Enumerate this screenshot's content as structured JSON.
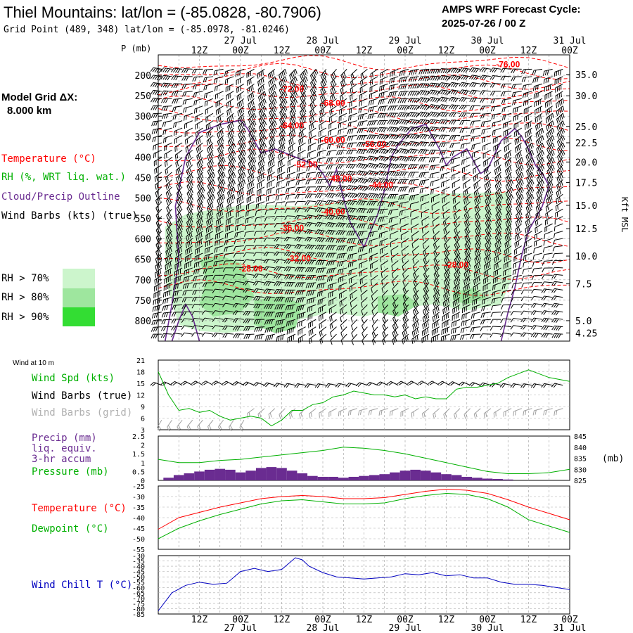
{
  "header": {
    "title": "Thiel Mountains:  lat/lon = (-85.0828, -80.7906)",
    "grid_point": "Grid Point (489, 348) lat/lon = (-85.0978, -81.0246)",
    "cycle_line1": "AMPS WRF Forecast Cycle:",
    "cycle_line2": "2025-07-26 / 00  Z",
    "model_grid_line1": "Model Grid ΔX:",
    "model_grid_line2": "8.000 km"
  },
  "colors": {
    "temperature": "#ff0000",
    "rh": "#00b000",
    "cloud": "#6a2c91",
    "wind": "#000000",
    "wind_grid": "#a0a0a0",
    "rh70": "#ccf5cc",
    "rh80": "#9ee69e",
    "rh90": "#33dd33",
    "wind_chill": "#0000c0",
    "precip": "#6a2c91"
  },
  "time_axis": {
    "hour_labels": [
      "12Z",
      "00Z",
      "12Z",
      "00Z",
      "12Z",
      "00Z",
      "12Z",
      "00Z",
      "12Z",
      "00Z"
    ],
    "date_labels": [
      "27 Jul",
      "28 Jul",
      "29 Jul",
      "30 Jul",
      "31 Jul"
    ],
    "range_hours": [
      0,
      120
    ]
  },
  "legend": {
    "temperature": "Temperature (°C)",
    "rh": "RH (%, WRT liq. wat.)",
    "cloud": "Cloud/Precip Outline",
    "wind": "Wind Barbs (kts) (true)",
    "rh70": "RH > 70%",
    "rh80": "RH > 80%",
    "rh90": "RH > 90%"
  },
  "chart_data": [
    {
      "type": "heatmap",
      "ylabel_left": "P (mb)",
      "ylabel_right": "Kft MSL",
      "pressure_ticks": [
        200,
        250,
        300,
        350,
        400,
        450,
        500,
        550,
        600,
        650,
        700,
        750,
        800
      ],
      "pressure_range": [
        150,
        850
      ],
      "height_ticks": [
        {
          "label": "35.0",
          "p": 198
        },
        {
          "label": "30.0",
          "p": 250
        },
        {
          "label": "25.0",
          "p": 325
        },
        {
          "label": "22.5",
          "p": 365
        },
        {
          "label": "20.0",
          "p": 412
        },
        {
          "label": "17.5",
          "p": 462
        },
        {
          "label": "15.0",
          "p": 518
        },
        {
          "label": "12.5",
          "p": 575
        },
        {
          "label": "10.0",
          "p": 642
        },
        {
          "label": "7.5",
          "p": 710
        },
        {
          "label": "5.0",
          "p": 800
        },
        {
          "label": "4.25",
          "p": 830
        }
      ],
      "temperature_labels": [
        {
          "text": "-76.00",
          "t": 102,
          "p": 180
        },
        {
          "text": "-72.00",
          "t": 39,
          "p": 240
        },
        {
          "text": "-68.00",
          "t": 51,
          "p": 275
        },
        {
          "text": "-64.00",
          "t": 39,
          "p": 330
        },
        {
          "text": "-60.00",
          "t": 51,
          "p": 365
        },
        {
          "text": "-56.00",
          "t": 63,
          "p": 375
        },
        {
          "text": "-52.00",
          "t": 43,
          "p": 425
        },
        {
          "text": "-48.00",
          "t": 53,
          "p": 460
        },
        {
          "text": "-44.00",
          "t": 65,
          "p": 475
        },
        {
          "text": "-40.00",
          "t": 51,
          "p": 540
        },
        {
          "text": "-36.00",
          "t": 39,
          "p": 580
        },
        {
          "text": "-32.00",
          "t": 41,
          "p": 655
        },
        {
          "text": "-28.00",
          "t": 27,
          "p": 680
        },
        {
          "text": "-28.00",
          "t": 87,
          "p": 670
        }
      ]
    },
    {
      "type": "line",
      "title": "Wind at 10 m",
      "labels": [
        "Wind Spd (kts)",
        "Wind Barbs (true)",
        "Wind Barbs (grid)"
      ],
      "ylim": [
        3,
        21
      ],
      "y_ticks": [
        3,
        6,
        9,
        12,
        15,
        18,
        21
      ],
      "series": [
        {
          "name": "Wind Spd (kts)",
          "x": [
            0,
            3,
            6,
            9,
            12,
            15,
            18,
            21,
            24,
            27,
            30,
            33,
            36,
            39,
            42,
            45,
            48,
            51,
            54,
            57,
            60,
            63,
            66,
            69,
            72,
            75,
            78,
            81,
            84,
            87,
            90,
            93,
            96,
            99,
            102,
            105,
            108,
            111,
            114,
            117,
            120
          ],
          "values": [
            18,
            12,
            8,
            8.5,
            7.5,
            8,
            6.5,
            5.5,
            6,
            6.5,
            6,
            4,
            5.5,
            8,
            8,
            9.5,
            10,
            11.5,
            12,
            13,
            12.5,
            12,
            12,
            11.5,
            12,
            11,
            11.5,
            11,
            11,
            13.5,
            14,
            14,
            14.5,
            15,
            16.5,
            17.5,
            18.5,
            17.5,
            16.5,
            16,
            15.5
          ]
        }
      ]
    },
    {
      "type": "bar",
      "labels": [
        "Precip (mm)",
        "liq. equiv.",
        "3-hr accum",
        "Pressure (mb)"
      ],
      "ylabel_right": "(mb)",
      "ylim": [
        0,
        2.5
      ],
      "y_ticks": [
        0,
        0.5,
        1,
        1.5,
        2,
        2.5
      ],
      "ylim_right": [
        825,
        845
      ],
      "y_ticks_right": [
        825,
        830,
        835,
        840,
        845
      ],
      "x": [
        3,
        6,
        9,
        12,
        15,
        18,
        21,
        24,
        27,
        30,
        33,
        36,
        39,
        42,
        45,
        48,
        51,
        54,
        57,
        60,
        63,
        66,
        69,
        72,
        75,
        78,
        81,
        84,
        87,
        90,
        93,
        96,
        99,
        102
      ],
      "values": [
        0.15,
        0.3,
        0.4,
        0.5,
        0.6,
        0.65,
        0.6,
        0.45,
        0.55,
        0.7,
        0.75,
        0.7,
        0.55,
        0.4,
        0.25,
        0.2,
        0.2,
        0.15,
        0.2,
        0.25,
        0.3,
        0.35,
        0.45,
        0.55,
        0.6,
        0.55,
        0.45,
        0.35,
        0.3,
        0.2,
        0.15,
        0.1,
        0.08,
        0.05
      ],
      "series": [
        {
          "name": "Pressure (mb)",
          "x": [
            0,
            6,
            12,
            18,
            24,
            30,
            36,
            42,
            48,
            54,
            60,
            66,
            72,
            78,
            84,
            90,
            96,
            102,
            108,
            114,
            120
          ],
          "values": [
            834.5,
            833,
            833,
            834,
            834.5,
            835.5,
            836.5,
            837.5,
            838.5,
            840,
            839.5,
            838.5,
            837,
            835,
            833,
            831,
            829,
            828,
            828,
            828.5,
            830
          ]
        }
      ]
    },
    {
      "type": "line",
      "labels": [
        "Temperature (°C)",
        "Dewpoint (°C)"
      ],
      "ylim": [
        -55,
        -25
      ],
      "y_ticks": [
        -55,
        -50,
        -45,
        -40,
        -35,
        -30,
        -25
      ],
      "series": [
        {
          "name": "Temperature (°C)",
          "x": [
            0,
            6,
            12,
            18,
            24,
            30,
            36,
            42,
            48,
            54,
            60,
            66,
            72,
            78,
            84,
            90,
            96,
            102,
            108,
            114,
            120
          ],
          "values": [
            -45.5,
            -40,
            -37.5,
            -35,
            -33,
            -31,
            -30,
            -29.5,
            -30,
            -31,
            -31,
            -30.5,
            -29,
            -27.5,
            -26.5,
            -27,
            -28.5,
            -31.5,
            -35,
            -38,
            -41
          ]
        },
        {
          "name": "Dewpoint (°C)",
          "x": [
            0,
            6,
            12,
            18,
            24,
            30,
            36,
            42,
            48,
            54,
            60,
            66,
            72,
            78,
            84,
            90,
            96,
            102,
            108,
            114,
            120
          ],
          "values": [
            -50,
            -45,
            -41.5,
            -38.5,
            -36,
            -33.5,
            -32,
            -31.5,
            -32.5,
            -33.5,
            -33.5,
            -33,
            -31,
            -29.5,
            -28.5,
            -29,
            -31,
            -35,
            -41,
            -44,
            -47
          ]
        }
      ]
    },
    {
      "type": "line",
      "labels": [
        "Wind Chill T (°C)"
      ],
      "ylim": [
        -85,
        -30
      ],
      "y_ticks": [
        -85,
        -80,
        -75,
        -70,
        -65,
        -60,
        -55,
        -50,
        -45,
        -40,
        -35,
        -30
      ],
      "series": [
        {
          "name": "Wind Chill T (°C)",
          "x": [
            0,
            4,
            8,
            12,
            16,
            20,
            24,
            28,
            32,
            36,
            40,
            42,
            44,
            48,
            52,
            56,
            60,
            64,
            68,
            72,
            76,
            80,
            84,
            88,
            92,
            96,
            100,
            104,
            108,
            112,
            116,
            120
          ],
          "values": [
            -82,
            -65,
            -58,
            -55,
            -57,
            -56,
            -45,
            -42,
            -45,
            -43,
            -32,
            -34,
            -40,
            -46,
            -50,
            -51,
            -52,
            -51,
            -50,
            -47,
            -48,
            -46,
            -49,
            -48,
            -51,
            -51,
            -55,
            -57,
            -57,
            -58,
            -60,
            -62
          ]
        }
      ]
    }
  ]
}
